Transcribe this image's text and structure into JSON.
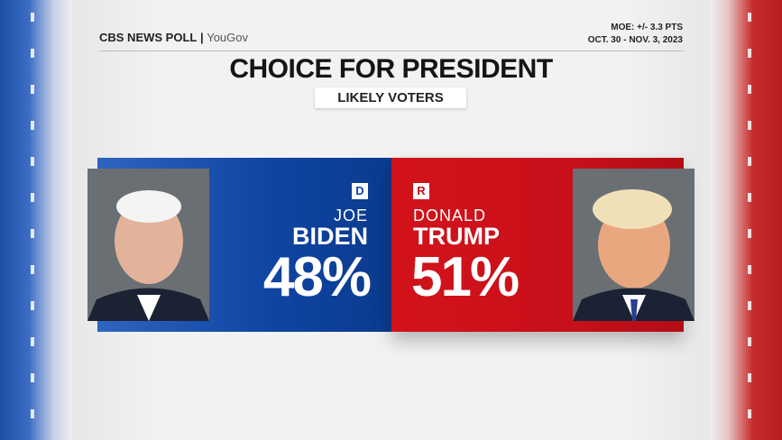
{
  "header": {
    "brand": "CBS NEWS POLL",
    "partner": "YouGov",
    "moe": "MOE: +/- 3.3 PTS",
    "dates": "OCT. 30 - NOV. 3, 2023"
  },
  "title": "CHOICE FOR PRESIDENT",
  "subtitle": "LIKELY VOTERS",
  "candidates": [
    {
      "party": "D",
      "first_name": "JOE",
      "last_name": "BIDEN",
      "share": "48%"
    },
    {
      "party": "R",
      "first_name": "DONALD",
      "last_name": "TRUMP",
      "share": "51%"
    }
  ]
}
